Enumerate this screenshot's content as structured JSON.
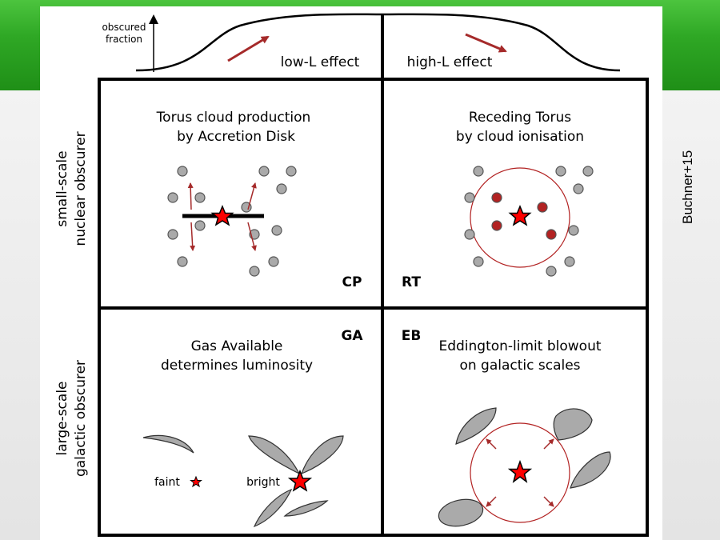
{
  "top_curve": {
    "axis_label_line1": "obscured",
    "axis_label_line2": "fraction",
    "left_label": "low-L effect",
    "right_label": "high-L effect"
  },
  "row_labels": {
    "top_line1": "small-scale",
    "top_line2": "nuclear obscurer",
    "bottom_line1": "large-scale",
    "bottom_line2": "galactic obscurer"
  },
  "panels": {
    "cp": {
      "title_line1": "Torus cloud production",
      "title_line2": "by Accretion Disk",
      "code": "CP"
    },
    "rt": {
      "title_line1": "Receding Torus",
      "title_line2": "by cloud ionisation",
      "code": "RT"
    },
    "ga": {
      "title_line1": "Gas Available",
      "title_line2": "determines luminosity",
      "code": "GA",
      "faint_label": "faint",
      "bright_label": "bright"
    },
    "eb": {
      "title_line1": "Eddington-limit blowout",
      "title_line2": "on galactic scales",
      "code": "EB"
    }
  },
  "citation": "Buchner+15",
  "colors": {
    "header_green": "#2fa825",
    "star_red": "#ff0000",
    "arrow_red": "#a52a2a",
    "cloud_grey": "#aaaaaa",
    "ionised_cloud": "#b22222"
  }
}
